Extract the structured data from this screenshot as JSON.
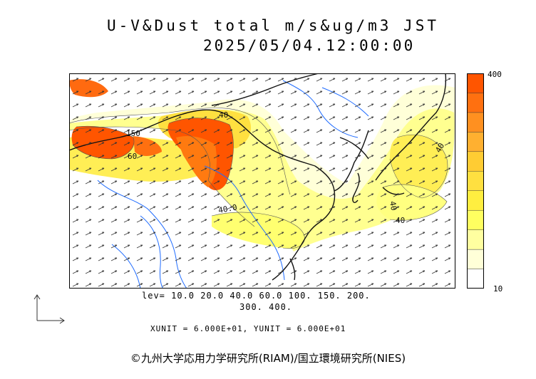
{
  "title": {
    "line1": "U-V&Dust total m/s&ug/m3 JST",
    "line2": "2025/05/04.12:00:00"
  },
  "colorbar": {
    "max_label": "400",
    "min_label": "10",
    "colors": [
      "#ffffff",
      "#ffffd8",
      "#ffffa0",
      "#ffff60",
      "#ffee40",
      "#ffe040",
      "#ffcc33",
      "#ffb030",
      "#ff9020",
      "#ff7010",
      "#ff5500"
    ]
  },
  "levels": {
    "line1": "lev= 10.0 20.0 40.0 60.0 100. 150. 200.",
    "line2": "300. 400."
  },
  "units": "XUNIT = 6.000E+01, YUNIT = 6.000E+01",
  "credit": "©九州大学応用力学研究所(RIAM)/国立環境研究所(NIES)",
  "contour_labels": [
    "150",
    "60",
    "40",
    "40.0",
    "40",
    "40",
    "40"
  ]
}
